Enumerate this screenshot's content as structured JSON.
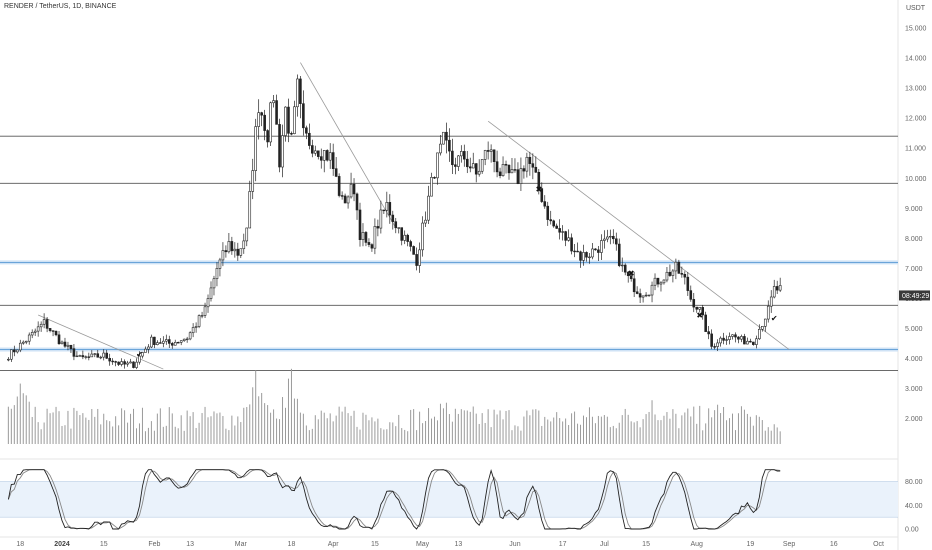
{
  "header": {
    "symbol": "RENDER / TetherUS, 1D, BINANCE",
    "currency": "USDT"
  },
  "colors": {
    "candle": "#222222",
    "wick": "#222222",
    "hline": "#555555",
    "hline_zone": "#5b9bd5",
    "trend": "#9a9a9a",
    "volume": "#9a9a9a",
    "stoch_k": "#222222",
    "stoch_d": "#888888",
    "stoch_band": "#eaf2fb",
    "price_tag_bg": "#3a3a3a",
    "price_tag_fg": "#ffffff"
  },
  "chart_data": {
    "type": "candlestick",
    "price_axis": {
      "ticks": [
        "15.000",
        "14.000",
        "13.000",
        "12.000",
        "11.000",
        "10.000",
        "9.000",
        "8.000",
        "7.000",
        "6.000",
        "5.000",
        "4.000",
        "3.000",
        "2.000"
      ],
      "range": [
        1.0,
        15.5
      ]
    },
    "time_axis": {
      "labels": [
        {
          "text": "18",
          "day": -14,
          "bold": false
        },
        {
          "text": "2024",
          "day": 0,
          "bold": true
        },
        {
          "text": "15",
          "day": 14,
          "bold": false
        },
        {
          "text": "Feb",
          "day": 31,
          "bold": false
        },
        {
          "text": "13",
          "day": 43,
          "bold": false
        },
        {
          "text": "Mar",
          "day": 60,
          "bold": false
        },
        {
          "text": "18",
          "day": 77,
          "bold": false
        },
        {
          "text": "Apr",
          "day": 91,
          "bold": false
        },
        {
          "text": "15",
          "day": 105,
          "bold": false
        },
        {
          "text": "May",
          "day": 121,
          "bold": false
        },
        {
          "text": "13",
          "day": 133,
          "bold": false
        },
        {
          "text": "Jun",
          "day": 152,
          "bold": false
        },
        {
          "text": "17",
          "day": 168,
          "bold": false
        },
        {
          "text": "Jul",
          "day": 182,
          "bold": false
        },
        {
          "text": "15",
          "day": 196,
          "bold": false
        },
        {
          "text": "Aug",
          "day": 213,
          "bold": false
        },
        {
          "text": "19",
          "day": 231,
          "bold": false
        },
        {
          "text": "Sep",
          "day": 244,
          "bold": false
        },
        {
          "text": "16",
          "day": 259,
          "bold": false
        },
        {
          "text": "Oct",
          "day": 274,
          "bold": false
        }
      ]
    },
    "price_path": [
      [
        -18,
        4.1
      ],
      [
        -10,
        4.8
      ],
      [
        -6,
        5.2
      ],
      [
        0,
        4.5
      ],
      [
        6,
        4.0
      ],
      [
        14,
        4.1
      ],
      [
        20,
        3.8
      ],
      [
        24,
        3.8
      ],
      [
        30,
        4.6
      ],
      [
        36,
        4.5
      ],
      [
        42,
        4.7
      ],
      [
        48,
        5.6
      ],
      [
        52,
        7.0
      ],
      [
        56,
        7.8
      ],
      [
        59,
        7.5
      ],
      [
        62,
        8.2
      ],
      [
        64,
        10.5
      ],
      [
        66,
        12.5
      ],
      [
        69,
        11.5
      ],
      [
        71,
        12.8
      ],
      [
        73,
        10.6
      ],
      [
        75,
        12.3
      ],
      [
        77,
        11.2
      ],
      [
        79,
        13.0
      ],
      [
        81,
        11.4
      ],
      [
        86,
        11.0
      ],
      [
        90,
        10.7
      ],
      [
        94,
        9.2
      ],
      [
        98,
        9.7
      ],
      [
        100,
        8.2
      ],
      [
        103,
        7.6
      ],
      [
        106,
        8.5
      ],
      [
        109,
        9.1
      ],
      [
        112,
        8.5
      ],
      [
        116,
        7.8
      ],
      [
        119,
        7.3
      ],
      [
        122,
        8.8
      ],
      [
        125,
        10.3
      ],
      [
        128,
        11.2
      ],
      [
        131,
        10.5
      ],
      [
        135,
        10.7
      ],
      [
        139,
        10.1
      ],
      [
        143,
        11.0
      ],
      [
        147,
        10.2
      ],
      [
        150,
        10.1
      ],
      [
        153,
        10.0
      ],
      [
        156,
        10.7
      ],
      [
        158,
        10.2
      ],
      [
        161,
        9.4
      ],
      [
        164,
        8.5
      ],
      [
        167,
        8.2
      ],
      [
        171,
        7.8
      ],
      [
        174,
        7.4
      ],
      [
        177,
        7.5
      ],
      [
        181,
        7.8
      ],
      [
        185,
        7.9
      ],
      [
        188,
        7.0
      ],
      [
        191,
        6.5
      ],
      [
        194,
        6.2
      ],
      [
        197,
        6.3
      ],
      [
        200,
        6.6
      ],
      [
        203,
        6.8
      ],
      [
        206,
        7.0
      ],
      [
        209,
        6.6
      ],
      [
        211,
        6.0
      ],
      [
        214,
        5.6
      ],
      [
        218,
        4.4
      ],
      [
        220,
        4.6
      ],
      [
        224,
        4.8
      ],
      [
        228,
        4.6
      ],
      [
        232,
        4.6
      ],
      [
        235,
        5.2
      ],
      [
        237,
        5.6
      ],
      [
        239,
        6.3
      ],
      [
        241,
        6.3
      ]
    ],
    "horizontal_levels": [
      {
        "price": 11.4,
        "zone": false
      },
      {
        "price": 9.83,
        "zone": false
      },
      {
        "price": 7.2,
        "zone": true
      },
      {
        "price": 5.77,
        "zone": false
      },
      {
        "price": 4.3,
        "zone": true
      },
      {
        "price": 3.6,
        "zone": false
      }
    ],
    "trendlines": [
      {
        "from": [
          -8,
          5.45
        ],
        "to": [
          34,
          3.65
        ]
      },
      {
        "from": [
          80,
          13.85
        ],
        "to": [
          112,
          8.35
        ]
      },
      {
        "from": [
          143,
          11.9
        ],
        "to": [
          244,
          4.3
        ]
      }
    ],
    "markers": [
      {
        "day": 26,
        "price": 4.05,
        "symbol": "✔"
      },
      {
        "day": 160,
        "price": 9.55,
        "symbol": "✖"
      },
      {
        "day": 191,
        "price": 6.75,
        "symbol": "✖"
      },
      {
        "day": 214,
        "price": 5.35,
        "symbol": "✖"
      },
      {
        "day": 239,
        "price": 5.25,
        "symbol": "✔"
      }
    ],
    "last_price_tag": {
      "price": 6.1,
      "text": "08:49:29"
    },
    "volume": {
      "relative_peaks": [
        [
          -14,
          0.8
        ],
        [
          65,
          1.0
        ],
        [
          77,
          0.9
        ],
        [
          128,
          0.6
        ],
        [
          198,
          0.55
        ],
        [
          220,
          0.5
        ]
      ]
    },
    "stochastic": {
      "ticks": [
        "80.00",
        "40.00",
        "0.00"
      ],
      "range": [
        0,
        100
      ],
      "band": [
        20,
        80
      ]
    }
  }
}
